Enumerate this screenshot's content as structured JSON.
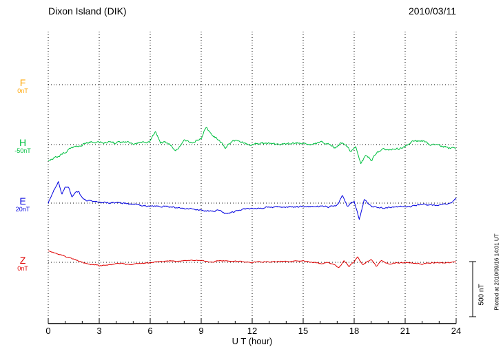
{
  "header": {
    "title": "Dixon Island (DIK)",
    "date": "2010/03/11"
  },
  "xlabel": "U T (hour)",
  "scale_bar": {
    "label": "500 nT",
    "nT": 500
  },
  "footer_note": "Plotted at 2010/09/16 14:01 UT",
  "chart_data": {
    "type": "line",
    "title": "Dixon Island (DIK)",
    "subtitle": "2010/03/11",
    "xlabel": "U T (hour)",
    "x_range": [
      0,
      24
    ],
    "xticks": [
      0,
      3,
      6,
      9,
      12,
      15,
      18,
      21,
      24
    ],
    "grid": "dotted",
    "scale_bar_nT": 500,
    "series": [
      {
        "name": "F",
        "color": "#FFA500",
        "baseline_label": "0nT",
        "noise_nT": 0,
        "keypoints": []
      },
      {
        "name": "H",
        "color": "#00C040",
        "baseline_label": "-50nT",
        "noise_nT": 16,
        "keypoints": [
          [
            0,
            -140
          ],
          [
            0.7,
            -96
          ],
          [
            1.2,
            -50
          ],
          [
            1.8,
            -13
          ],
          [
            2.2,
            13
          ],
          [
            3,
            19
          ],
          [
            3.5,
            26
          ],
          [
            4,
            13
          ],
          [
            4.5,
            26
          ],
          [
            5,
            6
          ],
          [
            5.5,
            19
          ],
          [
            6,
            30
          ],
          [
            6.3,
            115
          ],
          [
            6.6,
            19
          ],
          [
            7,
            13
          ],
          [
            7.5,
            -45
          ],
          [
            8,
            32
          ],
          [
            8.5,
            26
          ],
          [
            9,
            60
          ],
          [
            9.3,
            160
          ],
          [
            9.6,
            90
          ],
          [
            10,
            45
          ],
          [
            10.4,
            -30
          ],
          [
            10.8,
            25
          ],
          [
            11.2,
            32
          ],
          [
            11.6,
            6
          ],
          [
            12,
            0
          ],
          [
            12.5,
            13
          ],
          [
            13,
            13
          ],
          [
            13.5,
            0
          ],
          [
            14,
            6
          ],
          [
            14.5,
            13
          ],
          [
            15,
            19
          ],
          [
            15.5,
            6
          ],
          [
            16,
            13
          ],
          [
            16.5,
            -6
          ],
          [
            16.9,
            -32
          ],
          [
            17.2,
            19
          ],
          [
            17.5,
            0
          ],
          [
            17.8,
            -64
          ],
          [
            18.1,
            -13
          ],
          [
            18.4,
            -180
          ],
          [
            18.7,
            -96
          ],
          [
            19,
            -141
          ],
          [
            19.3,
            -80
          ],
          [
            19.6,
            -64
          ],
          [
            20,
            -51
          ],
          [
            20.5,
            -38
          ],
          [
            21,
            -26
          ],
          [
            21.4,
            30
          ],
          [
            21.7,
            38
          ],
          [
            22,
            26
          ],
          [
            22.5,
            0
          ],
          [
            23,
            -13
          ],
          [
            23.5,
            -26
          ],
          [
            24,
            -51
          ]
        ]
      },
      {
        "name": "E",
        "color": "#0000E0",
        "baseline_label": "20nT",
        "noise_nT": 11,
        "keypoints": [
          [
            0,
            0
          ],
          [
            0.3,
            115
          ],
          [
            0.6,
            192
          ],
          [
            0.8,
            80
          ],
          [
            1,
            140
          ],
          [
            1.2,
            141
          ],
          [
            1.4,
            60
          ],
          [
            1.6,
            100
          ],
          [
            1.8,
            96
          ],
          [
            2,
            40
          ],
          [
            2.2,
            26
          ],
          [
            2.6,
            15
          ],
          [
            3,
            13
          ],
          [
            3.5,
            6
          ],
          [
            4,
            0
          ],
          [
            4.5,
            -6
          ],
          [
            5,
            -13
          ],
          [
            5.5,
            -20
          ],
          [
            6,
            -32
          ],
          [
            6.5,
            -25
          ],
          [
            7,
            -32
          ],
          [
            7.5,
            -40
          ],
          [
            8,
            -51
          ],
          [
            8.5,
            -55
          ],
          [
            9,
            -64
          ],
          [
            9.5,
            -77
          ],
          [
            10,
            -64
          ],
          [
            10.5,
            -96
          ],
          [
            11,
            -77
          ],
          [
            11.5,
            -51
          ],
          [
            12,
            -51
          ],
          [
            12.5,
            -45
          ],
          [
            13,
            -38
          ],
          [
            13.5,
            -38
          ],
          [
            14,
            -38
          ],
          [
            14.5,
            -35
          ],
          [
            15,
            -32
          ],
          [
            15.5,
            -32
          ],
          [
            16,
            -32
          ],
          [
            16.5,
            -38
          ],
          [
            17,
            -19
          ],
          [
            17.3,
            64
          ],
          [
            17.6,
            -32
          ],
          [
            18,
            13
          ],
          [
            18.3,
            -147
          ],
          [
            18.6,
            32
          ],
          [
            19,
            -32
          ],
          [
            19.5,
            -51
          ],
          [
            20,
            -38
          ],
          [
            20.5,
            -35
          ],
          [
            21,
            -32
          ],
          [
            21.5,
            -26
          ],
          [
            22,
            -19
          ],
          [
            22.5,
            -16
          ],
          [
            23,
            -13
          ],
          [
            23.5,
            -6
          ],
          [
            23.8,
            10
          ],
          [
            24,
            51
          ]
        ]
      },
      {
        "name": "Z",
        "color": "#E00000",
        "baseline_label": "0nT",
        "noise_nT": 7,
        "keypoints": [
          [
            0,
            102
          ],
          [
            0.5,
            77
          ],
          [
            1,
            51
          ],
          [
            1.5,
            26
          ],
          [
            2,
            0
          ],
          [
            2.5,
            -19
          ],
          [
            3,
            -26
          ],
          [
            3.5,
            -20
          ],
          [
            4,
            -13
          ],
          [
            4.5,
            -16
          ],
          [
            5,
            -19
          ],
          [
            5.5,
            -10
          ],
          [
            6,
            0
          ],
          [
            6.5,
            6
          ],
          [
            7,
            13
          ],
          [
            7.5,
            10
          ],
          [
            8,
            13
          ],
          [
            8.5,
            16
          ],
          [
            9,
            19
          ],
          [
            9.5,
            0
          ],
          [
            10,
            13
          ],
          [
            10.5,
            10
          ],
          [
            11,
            13
          ],
          [
            11.5,
            6
          ],
          [
            12,
            0
          ],
          [
            12.5,
            3
          ],
          [
            13,
            6
          ],
          [
            13.5,
            6
          ],
          [
            14,
            6
          ],
          [
            14.5,
            10
          ],
          [
            15,
            13
          ],
          [
            15.5,
            0
          ],
          [
            16,
            -13
          ],
          [
            16.4,
            -6
          ],
          [
            16.8,
            -19
          ],
          [
            17.1,
            -51
          ],
          [
            17.4,
            13
          ],
          [
            17.7,
            -38
          ],
          [
            18,
            6
          ],
          [
            18.2,
            51
          ],
          [
            18.5,
            -26
          ],
          [
            18.8,
            10
          ],
          [
            19,
            32
          ],
          [
            19.3,
            -32
          ],
          [
            19.6,
            13
          ],
          [
            20,
            -13
          ],
          [
            20.5,
            -6
          ],
          [
            21,
            0
          ],
          [
            21.5,
            -6
          ],
          [
            22,
            -13
          ],
          [
            22.5,
            -6
          ],
          [
            23,
            -6
          ],
          [
            23.5,
            -3
          ],
          [
            24,
            0
          ]
        ]
      }
    ]
  }
}
